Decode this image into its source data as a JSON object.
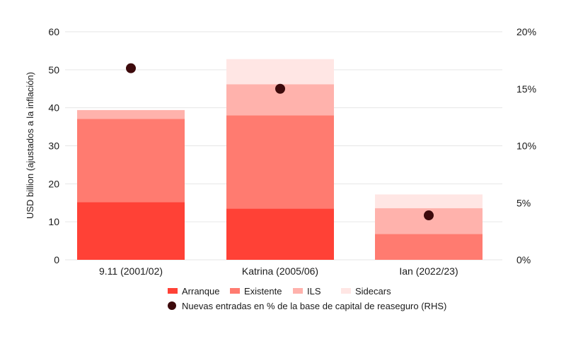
{
  "chart_data": {
    "type": "bar",
    "stacked": true,
    "categories": [
      "9.11 (2001/02)",
      "Katrina (2005/06)",
      "Ian (2022/23)"
    ],
    "series": [
      {
        "name": "Arranque",
        "color": "#ff4136",
        "values": [
          15.2,
          13.5,
          0
        ]
      },
      {
        "name": "Existente",
        "color": "#ff7b70",
        "values": [
          21.9,
          24.5,
          6.8
        ]
      },
      {
        "name": "ILS",
        "color": "#ffb2ac",
        "values": [
          2.3,
          8.2,
          6.8
        ]
      },
      {
        "name": "Sidecars",
        "color": "#ffe6e4",
        "values": [
          0,
          6.6,
          3.6
        ]
      }
    ],
    "dot_series": {
      "name": "Nuevas entradas en % de la base de capital de reaseguro (RHS)",
      "color": "#3d0a0c",
      "axis": "right",
      "values": [
        16.8,
        15.0,
        3.9
      ]
    },
    "ylabel": "USD billion (ajustados a la inflación)",
    "ylim": [
      0,
      60
    ],
    "yticks": [
      "0",
      "10",
      "20",
      "30",
      "40",
      "50",
      "60"
    ],
    "y2lim": [
      0,
      20
    ],
    "y2ticks": [
      "0%",
      "5%",
      "10%",
      "15%",
      "20%"
    ],
    "grid": true,
    "legend_position": "bottom"
  }
}
